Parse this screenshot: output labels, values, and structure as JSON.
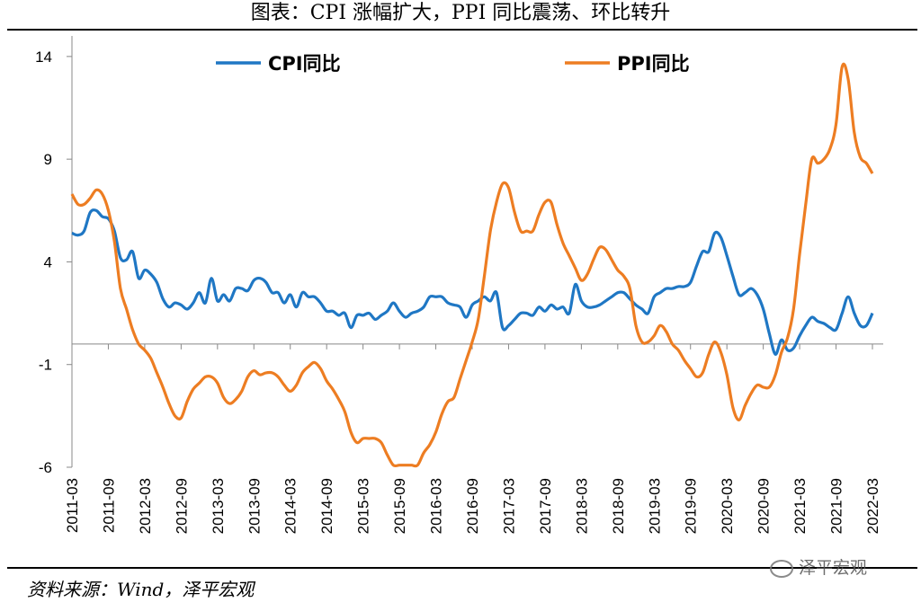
{
  "title": "图表：CPI 涨幅扩大，PPI 同比震荡、环比转升",
  "source": "资料来源：Wind，泽平宏观",
  "watermark": "泽平宏观",
  "chart_data": {
    "type": "line",
    "x_ticks": [
      "2011-03",
      "2011-09",
      "2012-03",
      "2012-09",
      "2013-03",
      "2013-09",
      "2014-03",
      "2014-09",
      "2015-03",
      "2015-09",
      "2016-03",
      "2016-09",
      "2017-03",
      "2017-09",
      "2018-03",
      "2018-09",
      "2019-03",
      "2019-09",
      "2020-03",
      "2020-09",
      "2021-03",
      "2021-09",
      "2022-03"
    ],
    "yticks": [
      14,
      9,
      4,
      -1,
      -6
    ],
    "ylim": [
      -6,
      15
    ],
    "legend_position": "top",
    "series": [
      {
        "name": "CPI同比",
        "color": "#1f77c4",
        "values": [
          [
            "2011-03",
            5.4
          ],
          [
            "2011-04",
            5.3
          ],
          [
            "2011-05",
            5.5
          ],
          [
            "2011-06",
            6.4
          ],
          [
            "2011-07",
            6.5
          ],
          [
            "2011-08",
            6.2
          ],
          [
            "2011-09",
            6.1
          ],
          [
            "2011-10",
            5.5
          ],
          [
            "2011-11",
            4.2
          ],
          [
            "2011-12",
            4.1
          ],
          [
            "2012-01",
            4.5
          ],
          [
            "2012-02",
            3.2
          ],
          [
            "2012-03",
            3.6
          ],
          [
            "2012-04",
            3.4
          ],
          [
            "2012-05",
            3.0
          ],
          [
            "2012-06",
            2.2
          ],
          [
            "2012-07",
            1.8
          ],
          [
            "2012-08",
            2.0
          ],
          [
            "2012-09",
            1.9
          ],
          [
            "2012-10",
            1.7
          ],
          [
            "2012-11",
            2.0
          ],
          [
            "2012-12",
            2.5
          ],
          [
            "2013-01",
            2.0
          ],
          [
            "2013-02",
            3.2
          ],
          [
            "2013-03",
            2.1
          ],
          [
            "2013-04",
            2.4
          ],
          [
            "2013-05",
            2.1
          ],
          [
            "2013-06",
            2.7
          ],
          [
            "2013-07",
            2.7
          ],
          [
            "2013-08",
            2.6
          ],
          [
            "2013-09",
            3.1
          ],
          [
            "2013-10",
            3.2
          ],
          [
            "2013-11",
            3.0
          ],
          [
            "2013-12",
            2.5
          ],
          [
            "2014-01",
            2.5
          ],
          [
            "2014-02",
            2.0
          ],
          [
            "2014-03",
            2.4
          ],
          [
            "2014-04",
            1.8
          ],
          [
            "2014-05",
            2.5
          ],
          [
            "2014-06",
            2.3
          ],
          [
            "2014-07",
            2.3
          ],
          [
            "2014-08",
            2.0
          ],
          [
            "2014-09",
            1.6
          ],
          [
            "2014-10",
            1.6
          ],
          [
            "2014-11",
            1.4
          ],
          [
            "2014-12",
            1.5
          ],
          [
            "2015-01",
            0.8
          ],
          [
            "2015-02",
            1.4
          ],
          [
            "2015-03",
            1.4
          ],
          [
            "2015-04",
            1.5
          ],
          [
            "2015-05",
            1.2
          ],
          [
            "2015-06",
            1.4
          ],
          [
            "2015-07",
            1.6
          ],
          [
            "2015-08",
            2.0
          ],
          [
            "2015-09",
            1.6
          ],
          [
            "2015-10",
            1.3
          ],
          [
            "2015-11",
            1.5
          ],
          [
            "2015-12",
            1.6
          ],
          [
            "2016-01",
            1.8
          ],
          [
            "2016-02",
            2.3
          ],
          [
            "2016-03",
            2.3
          ],
          [
            "2016-04",
            2.3
          ],
          [
            "2016-05",
            2.0
          ],
          [
            "2016-06",
            1.9
          ],
          [
            "2016-07",
            1.8
          ],
          [
            "2016-08",
            1.3
          ],
          [
            "2016-09",
            1.9
          ],
          [
            "2016-10",
            2.1
          ],
          [
            "2016-11",
            2.3
          ],
          [
            "2016-12",
            2.1
          ],
          [
            "2017-01",
            2.5
          ],
          [
            "2017-02",
            0.8
          ],
          [
            "2017-03",
            0.9
          ],
          [
            "2017-04",
            1.2
          ],
          [
            "2017-05",
            1.5
          ],
          [
            "2017-06",
            1.5
          ],
          [
            "2017-07",
            1.4
          ],
          [
            "2017-08",
            1.8
          ],
          [
            "2017-09",
            1.6
          ],
          [
            "2017-10",
            1.9
          ],
          [
            "2017-11",
            1.7
          ],
          [
            "2017-12",
            1.8
          ],
          [
            "2018-01",
            1.5
          ],
          [
            "2018-02",
            2.9
          ],
          [
            "2018-03",
            2.1
          ],
          [
            "2018-04",
            1.8
          ],
          [
            "2018-05",
            1.8
          ],
          [
            "2018-06",
            1.9
          ],
          [
            "2018-07",
            2.1
          ],
          [
            "2018-08",
            2.3
          ],
          [
            "2018-09",
            2.5
          ],
          [
            "2018-10",
            2.5
          ],
          [
            "2018-11",
            2.2
          ],
          [
            "2018-12",
            1.9
          ],
          [
            "2019-01",
            1.7
          ],
          [
            "2019-02",
            1.5
          ],
          [
            "2019-03",
            2.3
          ],
          [
            "2019-04",
            2.5
          ],
          [
            "2019-05",
            2.7
          ],
          [
            "2019-06",
            2.7
          ],
          [
            "2019-07",
            2.8
          ],
          [
            "2019-08",
            2.8
          ],
          [
            "2019-09",
            3.0
          ],
          [
            "2019-10",
            3.8
          ],
          [
            "2019-11",
            4.5
          ],
          [
            "2019-12",
            4.5
          ],
          [
            "2020-01",
            5.4
          ],
          [
            "2020-02",
            5.2
          ],
          [
            "2020-03",
            4.3
          ],
          [
            "2020-04",
            3.3
          ],
          [
            "2020-05",
            2.4
          ],
          [
            "2020-06",
            2.5
          ],
          [
            "2020-07",
            2.7
          ],
          [
            "2020-08",
            2.4
          ],
          [
            "2020-09",
            1.7
          ],
          [
            "2020-10",
            0.5
          ],
          [
            "2020-11",
            -0.5
          ],
          [
            "2020-12",
            0.2
          ],
          [
            "2021-01",
            -0.3
          ],
          [
            "2021-02",
            -0.2
          ],
          [
            "2021-03",
            0.4
          ],
          [
            "2021-04",
            0.9
          ],
          [
            "2021-05",
            1.3
          ],
          [
            "2021-06",
            1.1
          ],
          [
            "2021-07",
            1.0
          ],
          [
            "2021-08",
            0.8
          ],
          [
            "2021-09",
            0.7
          ],
          [
            "2021-10",
            1.5
          ],
          [
            "2021-11",
            2.3
          ],
          [
            "2021-12",
            1.5
          ],
          [
            "2022-01",
            0.9
          ],
          [
            "2022-02",
            0.9
          ],
          [
            "2022-03",
            1.5
          ]
        ]
      },
      {
        "name": "PPI同比",
        "color": "#ed7d22",
        "values": [
          [
            "2011-03",
            7.3
          ],
          [
            "2011-04",
            6.8
          ],
          [
            "2011-05",
            6.8
          ],
          [
            "2011-06",
            7.1
          ],
          [
            "2011-07",
            7.5
          ],
          [
            "2011-08",
            7.3
          ],
          [
            "2011-09",
            6.5
          ],
          [
            "2011-10",
            5.0
          ],
          [
            "2011-11",
            2.7
          ],
          [
            "2011-12",
            1.7
          ],
          [
            "2012-01",
            0.7
          ],
          [
            "2012-02",
            0.0
          ],
          [
            "2012-03",
            -0.3
          ],
          [
            "2012-04",
            -0.7
          ],
          [
            "2012-05",
            -1.4
          ],
          [
            "2012-06",
            -2.1
          ],
          [
            "2012-07",
            -2.9
          ],
          [
            "2012-08",
            -3.5
          ],
          [
            "2012-09",
            -3.6
          ],
          [
            "2012-10",
            -2.8
          ],
          [
            "2012-11",
            -2.2
          ],
          [
            "2012-12",
            -1.9
          ],
          [
            "2013-01",
            -1.6
          ],
          [
            "2013-02",
            -1.6
          ],
          [
            "2013-03",
            -1.9
          ],
          [
            "2013-04",
            -2.6
          ],
          [
            "2013-05",
            -2.9
          ],
          [
            "2013-06",
            -2.7
          ],
          [
            "2013-07",
            -2.3
          ],
          [
            "2013-08",
            -1.6
          ],
          [
            "2013-09",
            -1.3
          ],
          [
            "2013-10",
            -1.5
          ],
          [
            "2013-11",
            -1.4
          ],
          [
            "2013-12",
            -1.4
          ],
          [
            "2014-01",
            -1.6
          ],
          [
            "2014-02",
            -2.0
          ],
          [
            "2014-03",
            -2.3
          ],
          [
            "2014-04",
            -2.0
          ],
          [
            "2014-05",
            -1.4
          ],
          [
            "2014-06",
            -1.1
          ],
          [
            "2014-07",
            -0.9
          ],
          [
            "2014-08",
            -1.2
          ],
          [
            "2014-09",
            -1.8
          ],
          [
            "2014-10",
            -2.2
          ],
          [
            "2014-11",
            -2.7
          ],
          [
            "2014-12",
            -3.3
          ],
          [
            "2015-01",
            -4.3
          ],
          [
            "2015-02",
            -4.8
          ],
          [
            "2015-03",
            -4.6
          ],
          [
            "2015-04",
            -4.6
          ],
          [
            "2015-05",
            -4.6
          ],
          [
            "2015-06",
            -4.8
          ],
          [
            "2015-07",
            -5.4
          ],
          [
            "2015-08",
            -5.9
          ],
          [
            "2015-09",
            -5.9
          ],
          [
            "2015-10",
            -5.9
          ],
          [
            "2015-11",
            -5.9
          ],
          [
            "2015-12",
            -5.9
          ],
          [
            "2016-01",
            -5.3
          ],
          [
            "2016-02",
            -4.9
          ],
          [
            "2016-03",
            -4.3
          ],
          [
            "2016-04",
            -3.4
          ],
          [
            "2016-05",
            -2.8
          ],
          [
            "2016-06",
            -2.6
          ],
          [
            "2016-07",
            -1.7
          ],
          [
            "2016-08",
            -0.8
          ],
          [
            "2016-09",
            0.1
          ],
          [
            "2016-10",
            1.2
          ],
          [
            "2016-11",
            3.3
          ],
          [
            "2016-12",
            5.5
          ],
          [
            "2017-01",
            6.9
          ],
          [
            "2017-02",
            7.8
          ],
          [
            "2017-03",
            7.6
          ],
          [
            "2017-04",
            6.4
          ],
          [
            "2017-05",
            5.5
          ],
          [
            "2017-06",
            5.5
          ],
          [
            "2017-07",
            5.5
          ],
          [
            "2017-08",
            6.3
          ],
          [
            "2017-09",
            6.9
          ],
          [
            "2017-10",
            6.9
          ],
          [
            "2017-11",
            5.8
          ],
          [
            "2017-12",
            4.9
          ],
          [
            "2018-01",
            4.3
          ],
          [
            "2018-02",
            3.7
          ],
          [
            "2018-03",
            3.1
          ],
          [
            "2018-04",
            3.4
          ],
          [
            "2018-05",
            4.1
          ],
          [
            "2018-06",
            4.7
          ],
          [
            "2018-07",
            4.6
          ],
          [
            "2018-08",
            4.1
          ],
          [
            "2018-09",
            3.6
          ],
          [
            "2018-10",
            3.3
          ],
          [
            "2018-11",
            2.7
          ],
          [
            "2018-12",
            0.9
          ],
          [
            "2019-01",
            0.1
          ],
          [
            "2019-02",
            0.1
          ],
          [
            "2019-03",
            0.4
          ],
          [
            "2019-04",
            0.9
          ],
          [
            "2019-05",
            0.6
          ],
          [
            "2019-06",
            0.0
          ],
          [
            "2019-07",
            -0.3
          ],
          [
            "2019-08",
            -0.8
          ],
          [
            "2019-09",
            -1.2
          ],
          [
            "2019-10",
            -1.6
          ],
          [
            "2019-11",
            -1.4
          ],
          [
            "2019-12",
            -0.5
          ],
          [
            "2020-01",
            0.1
          ],
          [
            "2020-02",
            -0.4
          ],
          [
            "2020-03",
            -1.5
          ],
          [
            "2020-04",
            -3.1
          ],
          [
            "2020-05",
            -3.7
          ],
          [
            "2020-06",
            -3.0
          ],
          [
            "2020-07",
            -2.4
          ],
          [
            "2020-08",
            -2.0
          ],
          [
            "2020-09",
            -2.1
          ],
          [
            "2020-10",
            -2.1
          ],
          [
            "2020-11",
            -1.5
          ],
          [
            "2020-12",
            -0.4
          ],
          [
            "2021-01",
            0.3
          ],
          [
            "2021-02",
            1.7
          ],
          [
            "2021-03",
            4.4
          ],
          [
            "2021-04",
            6.8
          ],
          [
            "2021-05",
            9.0
          ],
          [
            "2021-06",
            8.8
          ],
          [
            "2021-07",
            9.0
          ],
          [
            "2021-08",
            9.5
          ],
          [
            "2021-09",
            10.7
          ],
          [
            "2021-10",
            13.5
          ],
          [
            "2021-11",
            12.9
          ],
          [
            "2021-12",
            10.3
          ],
          [
            "2022-01",
            9.1
          ],
          [
            "2022-02",
            8.8
          ],
          [
            "2022-03",
            8.3
          ]
        ]
      }
    ]
  }
}
